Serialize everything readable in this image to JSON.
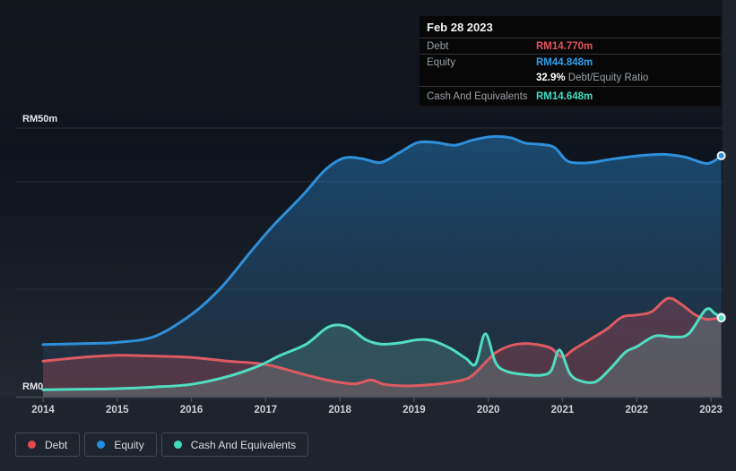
{
  "tooltip": {
    "date": "Feb 28 2023",
    "debt_label": "Debt",
    "debt_value": "RM14.770m",
    "debt_color": "#e4525c",
    "equity_label": "Equity",
    "equity_value": "RM44.848m",
    "equity_color": "#2da0ea",
    "ratio_value": "32.9%",
    "ratio_label": " Debt/Equity Ratio",
    "cash_label": "Cash And Equivalents",
    "cash_value": "RM14.648m",
    "cash_color": "#3bdec0"
  },
  "legend": {
    "items": [
      {
        "label": "Debt",
        "color": "#e14b52"
      },
      {
        "label": "Equity",
        "color": "#2090de"
      },
      {
        "label": "Cash And Equivalents",
        "color": "#40ddbf"
      }
    ]
  },
  "chart_data": {
    "type": "area",
    "currency": "RM",
    "unit": "millions",
    "ylim": [
      0,
      50
    ],
    "y_axis": {
      "top_label": "RM50m",
      "zero_label": "RM0",
      "gridline_values": [
        50,
        40,
        20
      ]
    },
    "x_axis": {
      "ticks": [
        2014,
        2015,
        2016,
        2017,
        2018,
        2019,
        2020,
        2021,
        2022,
        2023
      ]
    },
    "series": [
      {
        "name": "Equity",
        "color": "#2e8fd9",
        "gradient": true,
        "area_fill": "rgba(45,135,205,0.30)",
        "points": [
          [
            2014.0,
            9.7
          ],
          [
            2014.6,
            9.9
          ],
          [
            2015.0,
            10.1
          ],
          [
            2015.5,
            11.2
          ],
          [
            2016.0,
            15.3
          ],
          [
            2016.4,
            20.3
          ],
          [
            2016.8,
            27.0
          ],
          [
            2017.1,
            31.8
          ],
          [
            2017.5,
            37.5
          ],
          [
            2017.8,
            42.2
          ],
          [
            2018.05,
            44.4
          ],
          [
            2018.3,
            44.3
          ],
          [
            2018.55,
            43.6
          ],
          [
            2018.8,
            45.4
          ],
          [
            2019.05,
            47.3
          ],
          [
            2019.3,
            47.3
          ],
          [
            2019.55,
            46.8
          ],
          [
            2019.8,
            47.8
          ],
          [
            2020.05,
            48.4
          ],
          [
            2020.3,
            48.2
          ],
          [
            2020.5,
            47.2
          ],
          [
            2020.75,
            46.9
          ],
          [
            2020.9,
            46.3
          ],
          [
            2021.05,
            44.0
          ],
          [
            2021.2,
            43.5
          ],
          [
            2021.4,
            43.6
          ],
          [
            2021.65,
            44.2
          ],
          [
            2022.0,
            44.8
          ],
          [
            2022.35,
            45.1
          ],
          [
            2022.65,
            44.6
          ],
          [
            2022.95,
            43.4
          ],
          [
            2023.14,
            44.848
          ]
        ]
      },
      {
        "name": "Debt",
        "color": "#dd5a63",
        "gradient": false,
        "area_fill": "rgba(224,85,95,0.26)",
        "points": [
          [
            2014.0,
            6.6
          ],
          [
            2014.5,
            7.3
          ],
          [
            2015.0,
            7.7
          ],
          [
            2015.4,
            7.6
          ],
          [
            2016.0,
            7.3
          ],
          [
            2016.5,
            6.6
          ],
          [
            2017.0,
            6.0
          ],
          [
            2017.5,
            4.2
          ],
          [
            2017.9,
            2.9
          ],
          [
            2018.2,
            2.4
          ],
          [
            2018.42,
            3.1
          ],
          [
            2018.6,
            2.3
          ],
          [
            2018.9,
            2.0
          ],
          [
            2019.2,
            2.2
          ],
          [
            2019.5,
            2.7
          ],
          [
            2019.75,
            3.6
          ],
          [
            2019.95,
            6.2
          ],
          [
            2020.1,
            8.2
          ],
          [
            2020.3,
            9.5
          ],
          [
            2020.5,
            9.9
          ],
          [
            2020.7,
            9.6
          ],
          [
            2020.85,
            9.0
          ],
          [
            2021.0,
            7.4
          ],
          [
            2021.15,
            8.8
          ],
          [
            2021.4,
            10.9
          ],
          [
            2021.6,
            12.6
          ],
          [
            2021.8,
            14.8
          ],
          [
            2022.0,
            15.2
          ],
          [
            2022.2,
            15.8
          ],
          [
            2022.42,
            18.3
          ],
          [
            2022.6,
            17.2
          ],
          [
            2022.78,
            15.3
          ],
          [
            2022.95,
            14.4
          ],
          [
            2023.14,
            14.77
          ]
        ]
      },
      {
        "name": "Cash And Equivalents",
        "color": "#50ddc1",
        "gradient": false,
        "area_fill": "rgba(120,214,198,0.20)",
        "points": [
          [
            2014.0,
            1.3
          ],
          [
            2014.6,
            1.4
          ],
          [
            2015.0,
            1.5
          ],
          [
            2015.5,
            1.8
          ],
          [
            2016.0,
            2.3
          ],
          [
            2016.5,
            3.8
          ],
          [
            2016.9,
            5.7
          ],
          [
            2017.2,
            7.7
          ],
          [
            2017.55,
            9.8
          ],
          [
            2017.85,
            13.0
          ],
          [
            2018.1,
            13.0
          ],
          [
            2018.35,
            10.6
          ],
          [
            2018.55,
            9.8
          ],
          [
            2018.8,
            10.0
          ],
          [
            2019.05,
            10.6
          ],
          [
            2019.25,
            10.4
          ],
          [
            2019.5,
            8.9
          ],
          [
            2019.7,
            7.1
          ],
          [
            2019.83,
            6.1
          ],
          [
            2019.96,
            11.7
          ],
          [
            2020.1,
            6.3
          ],
          [
            2020.25,
            4.7
          ],
          [
            2020.5,
            4.1
          ],
          [
            2020.72,
            4.0
          ],
          [
            2020.85,
            4.9
          ],
          [
            2020.96,
            8.7
          ],
          [
            2021.1,
            4.3
          ],
          [
            2021.25,
            2.9
          ],
          [
            2021.45,
            2.8
          ],
          [
            2021.65,
            5.3
          ],
          [
            2021.85,
            8.3
          ],
          [
            2022.0,
            9.3
          ],
          [
            2022.25,
            11.3
          ],
          [
            2022.5,
            11.1
          ],
          [
            2022.7,
            11.7
          ],
          [
            2022.93,
            16.2
          ],
          [
            2023.05,
            15.5
          ],
          [
            2023.14,
            14.648
          ]
        ]
      }
    ]
  }
}
